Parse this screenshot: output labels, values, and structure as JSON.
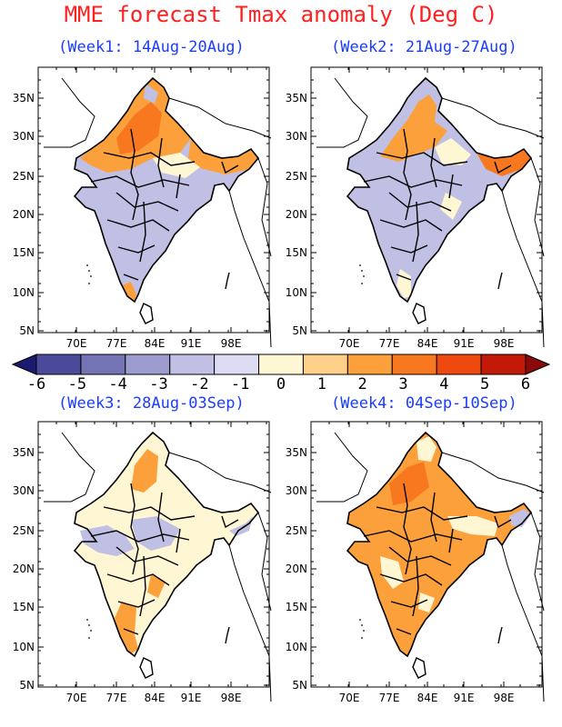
{
  "title": "MME forecast Tmax anomaly (Deg C)",
  "panels": [
    {
      "label": "(Week1: 14Aug-20Aug)",
      "dominant_south": "negative",
      "dominant_north": "positive"
    },
    {
      "label": "(Week2: 21Aug-27Aug)",
      "dominant_south": "negative",
      "dominant_north": "positive"
    },
    {
      "label": "(Week3: 28Aug-03Sep)",
      "dominant_south": "mixed",
      "dominant_north": "mixed"
    },
    {
      "label": "(Week4: 04Sep-10Sep)",
      "dominant_south": "positive",
      "dominant_north": "positive"
    }
  ],
  "lat_ticks": [
    "35N",
    "30N",
    "25N",
    "20N",
    "15N",
    "10N",
    "5N"
  ],
  "lon_ticks": [
    "70E",
    "77E",
    "84E",
    "91E",
    "98E"
  ],
  "colorbar": {
    "labels": [
      "-6",
      "-5",
      "-4",
      "-3",
      "-2",
      "-1",
      "0",
      "1",
      "2",
      "3",
      "4",
      "5",
      "6"
    ],
    "colors": [
      "#1a1a6e",
      "#4a4a9a",
      "#7474b4",
      "#9c9cce",
      "#c0c0e4",
      "#dcdcf2",
      "#fff6d4",
      "#ffd08a",
      "#fca03c",
      "#f87820",
      "#ee4a10",
      "#c21a06",
      "#8a0a0a"
    ]
  }
}
